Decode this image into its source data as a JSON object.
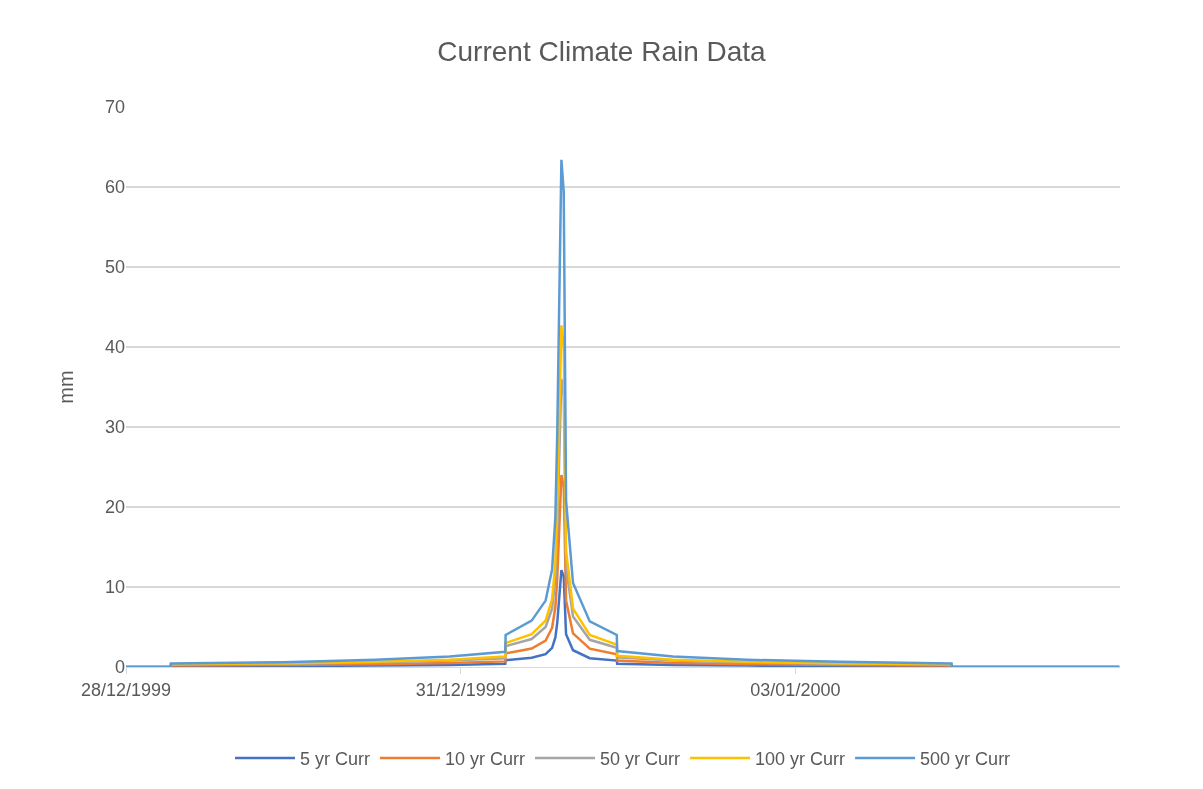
{
  "chart_data": {
    "type": "line",
    "title": "Current Climate Rain Data",
    "ylabel": "mm",
    "x": [
      "1999-12-28T00:00",
      "1999-12-28T09:35",
      "1999-12-28T09:40",
      "1999-12-29T09:40",
      "1999-12-30T05:40",
      "1999-12-30T21:40",
      "1999-12-31T09:35",
      "1999-12-31T09:40",
      "1999-12-31T15:16",
      "1999-12-31T18:16",
      "1999-12-31T19:40",
      "1999-12-31T20:22",
      "1999-12-31T20:46",
      "1999-12-31T21:40",
      "1999-12-31T22:10",
      "1999-12-31T22:40",
      "2000-01-01T00:10",
      "2000-01-01T03:46",
      "2000-01-01T09:35",
      "2000-01-01T09:40",
      "2000-01-01T21:40",
      "2000-01-02T13:40",
      "2000-01-03T09:40",
      "2000-01-04T09:35",
      "2000-01-04T09:40",
      "2000-01-05T21:40"
    ],
    "series": [
      {
        "name": "5 yr Curr",
        "color": "#4472c4",
        "values": [
          0,
          0,
          0.1,
          0.12,
          0.18,
          0.25,
          0.4,
          0.85,
          1.15,
          1.6,
          2.4,
          3.7,
          5.5,
          12.1,
          11.3,
          4.1,
          2.1,
          1.1,
          0.8,
          0.4,
          0.25,
          0.18,
          0.12,
          0.1,
          0,
          0
        ]
      },
      {
        "name": "10 yr Curr",
        "color": "#ed7d31",
        "values": [
          0,
          0,
          0.2,
          0.25,
          0.35,
          0.5,
          0.7,
          1.7,
          2.3,
          3.3,
          4.9,
          7.5,
          11,
          24,
          22.5,
          8.3,
          4.2,
          2.3,
          1.6,
          0.8,
          0.5,
          0.35,
          0.25,
          0.2,
          0,
          0
        ]
      },
      {
        "name": "50 yr Curr",
        "color": "#a5a5a5",
        "values": [
          0,
          0,
          0.3,
          0.4,
          0.55,
          0.8,
          1.1,
          2.6,
          3.5,
          5.0,
          7.3,
          11,
          17,
          36,
          34,
          12.5,
          6.3,
          3.4,
          2.4,
          1.2,
          0.8,
          0.55,
          0.4,
          0.3,
          0,
          0
        ]
      },
      {
        "name": "100 yr Curr",
        "color": "#ffc000",
        "values": [
          0,
          0,
          0.35,
          0.45,
          0.65,
          0.9,
          1.3,
          3.0,
          4.1,
          5.8,
          8.5,
          13,
          20,
          42.7,
          40,
          14.5,
          7.3,
          4.0,
          2.8,
          1.4,
          0.9,
          0.65,
          0.45,
          0.35,
          0,
          0
        ]
      },
      {
        "name": "500 yr Curr",
        "color": "#5b9bd5",
        "values": [
          0,
          0,
          0.45,
          0.6,
          0.9,
          1.3,
          1.9,
          4.0,
          5.8,
          8.3,
          12.2,
          18.7,
          29,
          63.4,
          59.4,
          20.8,
          10.5,
          5.7,
          4.0,
          2.0,
          1.3,
          0.9,
          0.65,
          0.45,
          0,
          0
        ]
      }
    ],
    "xlim": [
      "1999-12-28",
      "2000-01-05T21:50"
    ],
    "xticks": [
      {
        "value": "1999-12-28",
        "label": "28/12/1999"
      },
      {
        "value": "1999-12-31",
        "label": "31/12/1999"
      },
      {
        "value": "2000-01-03",
        "label": "03/01/2000"
      }
    ],
    "ylim": [
      0,
      70
    ],
    "yticks": [
      0,
      10,
      20,
      30,
      40,
      50,
      60,
      70
    ],
    "grid": "y",
    "legend": "bottom",
    "marker": "none",
    "line_style": "solid"
  }
}
